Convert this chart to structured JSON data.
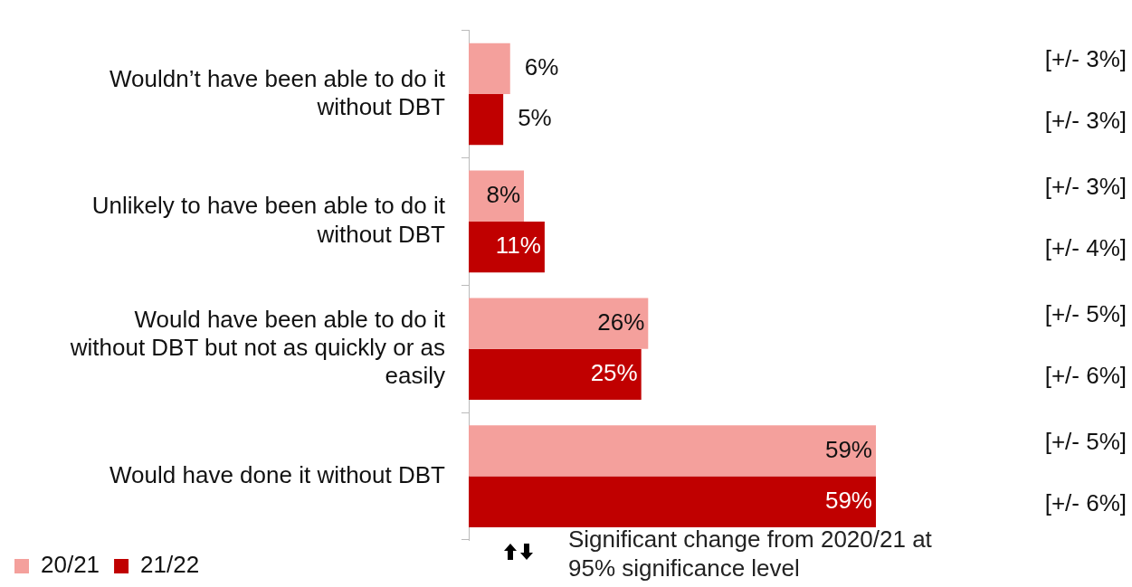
{
  "chart_data": {
    "type": "bar",
    "orientation": "horizontal",
    "categories": [
      "Wouldn’t have been able to do it without DBT",
      "Unlikely to have been able to do it without DBT",
      "Would have been able to do it without DBT but not as quickly or as easily",
      "Would have done it without DBT"
    ],
    "series": [
      {
        "name": "20/21",
        "color": "#f4a09c",
        "values": [
          6,
          8,
          26,
          59
        ],
        "value_labels": [
          "6%",
          "8%",
          "26%",
          "59%"
        ]
      },
      {
        "name": "21/22",
        "color": "#c00000",
        "values": [
          5,
          11,
          25,
          59
        ],
        "value_labels": [
          "5%",
          "11%",
          "25%",
          "59%"
        ]
      }
    ],
    "legend": "bottom left",
    "grid": false,
    "annotations": [
      "[+/- 3%]",
      "[+/- 3%]",
      "[+/- 3%]",
      "[+/- 4%]",
      "[+/- 5%]",
      "[+/- 6%]",
      "[+/- 5%]",
      "[+/- 6%]",
      "Significant change from 2020/21 at 95% significance level"
    ]
  }
}
